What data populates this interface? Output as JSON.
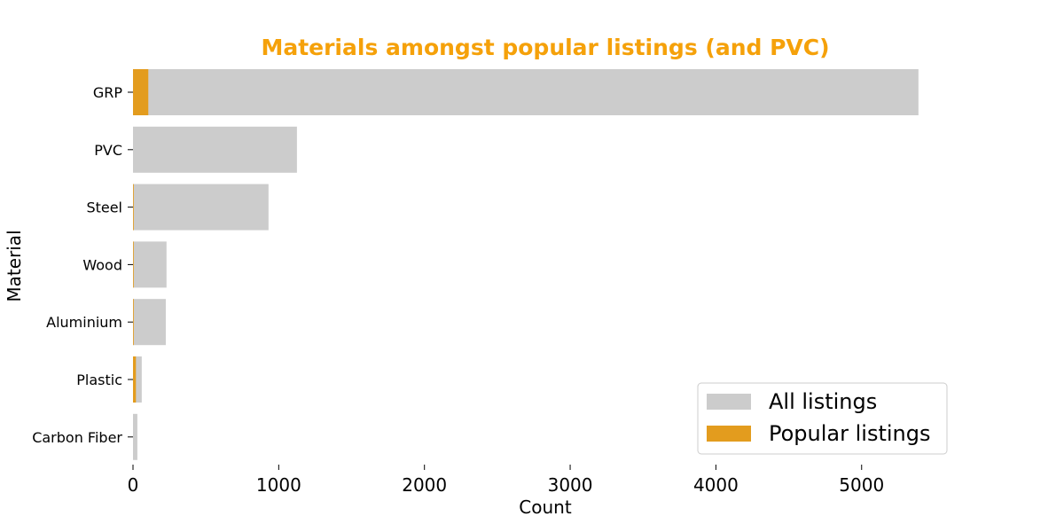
{
  "chart_data": {
    "type": "bar",
    "orientation": "horizontal",
    "title": "Materials amongst popular listings (and PVC)",
    "xlabel": "Count",
    "ylabel": "Material",
    "categories": [
      "GRP",
      "PVC",
      "Steel",
      "Wood",
      "Aluminium",
      "Plastic",
      "Carbon Fiber"
    ],
    "series": [
      {
        "name": "All listings",
        "color": "#cccccc",
        "values": [
          5390,
          1125,
          930,
          230,
          225,
          60,
          30
        ]
      },
      {
        "name": "Popular listings",
        "color": "#e39c1e",
        "values": [
          105,
          0,
          5,
          4,
          5,
          20,
          0
        ]
      }
    ],
    "xlim": [
      0,
      5700
    ],
    "xticks": [
      0,
      1000,
      2000,
      3000,
      4000,
      5000
    ],
    "xtick_labels": [
      "0",
      "1000",
      "2000",
      "3000",
      "4000",
      "5000"
    ],
    "grid": false,
    "legend_position": "bottom-right",
    "title_color": "#f5a10a"
  }
}
